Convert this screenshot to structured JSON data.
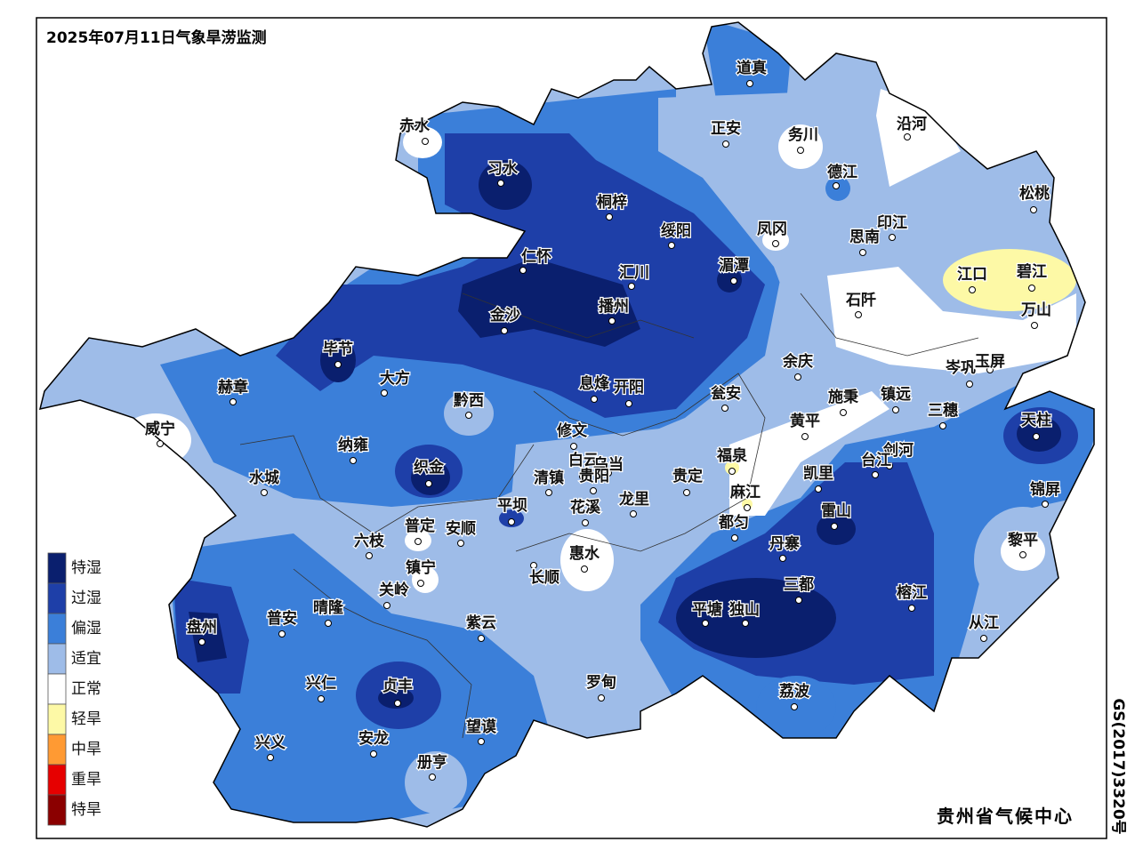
{
  "title": "2025年07月11日气象旱涝监测",
  "legend": [
    {
      "label": "特湿",
      "color": "#0a1f6e"
    },
    {
      "label": "过湿",
      "color": "#1e3fa8"
    },
    {
      "label": "偏湿",
      "color": "#3b7fd9"
    },
    {
      "label": "适宜",
      "color": "#9ebce8"
    },
    {
      "label": "正常",
      "color": "#ffffff"
    },
    {
      "label": "轻旱",
      "color": "#fdf9a6"
    },
    {
      "label": "中旱",
      "color": "#ff9a33"
    },
    {
      "label": "重旱",
      "color": "#e60000"
    },
    {
      "label": "特旱",
      "color": "#8b0000"
    }
  ],
  "cities": [
    "道真",
    "赤水",
    "习水",
    "正安",
    "务川",
    "沿河",
    "德江",
    "桐梓",
    "松桃",
    "绥阳",
    "凤冈",
    "印江",
    "思南",
    "仁怀",
    "汇川",
    "湄潭",
    "江口",
    "碧江",
    "石阡",
    "播州",
    "金沙",
    "万山",
    "毕节",
    "余庆",
    "岑巩",
    "玉屏",
    "大方",
    "赫章",
    "息烽",
    "开阳",
    "瓮安",
    "施秉",
    "镇远",
    "黔西",
    "三穗",
    "天柱",
    "黄平",
    "威宁",
    "修文",
    "纳雍",
    "福泉",
    "剑河",
    "白云",
    "乌当",
    "台江",
    "织金",
    "水城",
    "清镇",
    "贵阳",
    "凯里",
    "贵定",
    "锦屏",
    "麻江",
    "龙里",
    "平坝",
    "花溪",
    "雷山",
    "都匀",
    "普定",
    "安顺",
    "六枝",
    "黎平",
    "丹寨",
    "惠水",
    "长顺",
    "镇宁",
    "三都",
    "关岭",
    "榕江",
    "晴隆",
    "普安",
    "平塘",
    "独山",
    "从江",
    "紫云",
    "盘州",
    "罗甸",
    "兴仁",
    "贞丰",
    "荔波",
    "望谟",
    "安龙",
    "兴义",
    "册亨"
  ],
  "credit": "贵州省气候中心",
  "approval": "GS(2017)3320号"
}
